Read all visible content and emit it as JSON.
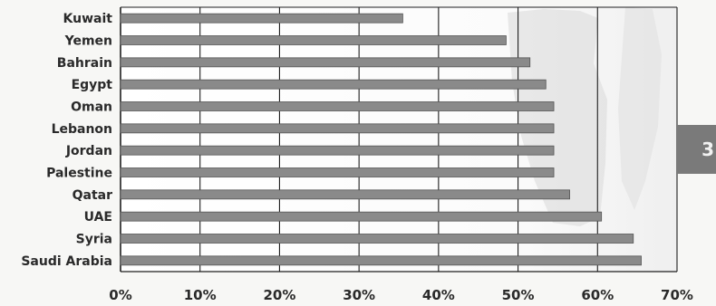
{
  "chart_data": {
    "type": "bar",
    "orientation": "horizontal",
    "categories": [
      "Kuwait",
      "Yemen",
      "Bahrain",
      "Egypt",
      "Oman",
      "Lebanon",
      "Jordan",
      "Palestine",
      "Qatar",
      "UAE",
      "Syria",
      "Saudi Arabia"
    ],
    "values": [
      35.5,
      48.5,
      51.5,
      53.5,
      54.5,
      54.5,
      54.5,
      54.5,
      56.5,
      60.5,
      64.5,
      65.5
    ],
    "xlim": [
      0,
      70
    ],
    "xticks": [
      "0%",
      "10%",
      "20%",
      "30%",
      "40%",
      "50%",
      "60%",
      "70%"
    ],
    "tick_step": 10,
    "grid": true,
    "legend": "none",
    "bar_color": "#8a8a8a"
  },
  "side_tab": {
    "text": "3",
    "color": "#7a7a7a"
  }
}
